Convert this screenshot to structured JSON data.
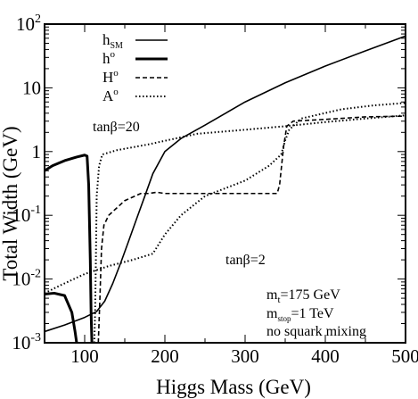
{
  "chart_data": {
    "type": "line",
    "xlabel": "Higgs Mass (GeV)",
    "ylabel": "Total Width (GeV)",
    "xlim": [
      50,
      500
    ],
    "ylim": [
      0.001,
      100
    ],
    "y_scale": "log",
    "grid": false,
    "legend_position": "top-left",
    "x_ticks": [
      {
        "value": 100,
        "label": "100"
      },
      {
        "value": 200,
        "label": "200"
      },
      {
        "value": 300,
        "label": "300"
      },
      {
        "value": 400,
        "label": "400"
      },
      {
        "value": 500,
        "label": "500"
      }
    ],
    "y_ticks": [
      {
        "value": 0.001,
        "base": "10",
        "exp": "-3"
      },
      {
        "value": 0.01,
        "base": "10",
        "exp": "-2"
      },
      {
        "value": 0.1,
        "base": "10",
        "exp": "-1"
      },
      {
        "value": 1,
        "base": "1",
        "exp": ""
      },
      {
        "value": 10,
        "base": "10",
        "exp": ""
      },
      {
        "value": 100,
        "base": "10",
        "exp": "2"
      }
    ],
    "legend": [
      {
        "main": "h",
        "sub": "SM",
        "sup": "",
        "style": "solid",
        "width": 1.6
      },
      {
        "main": "h",
        "sub": "",
        "sup": "o",
        "style": "solid",
        "width": 3
      },
      {
        "main": "H",
        "sub": "",
        "sup": "o",
        "style": "dashed",
        "width": 1.6
      },
      {
        "main": "A",
        "sub": "",
        "sup": "o",
        "style": "dotted",
        "width": 2
      }
    ],
    "annotations": {
      "tanb20": "tanβ=20",
      "tanb2": "tanβ=2",
      "mt_main": "m",
      "mt_sub": "t",
      "mt_rest": "=175 GeV",
      "mstop_main": "m",
      "mstop_sub": "stop",
      "mstop_rest": "=1 TeV",
      "mixing": "no squark mixing"
    },
    "series": [
      {
        "legend_index": 0,
        "style": "solid",
        "width": 1.6,
        "points": [
          [
            50,
            0.0015
          ],
          [
            75,
            0.0019
          ],
          [
            100,
            0.0025
          ],
          [
            115,
            0.0031
          ],
          [
            125,
            0.0045
          ],
          [
            135,
            0.0085
          ],
          [
            145,
            0.018
          ],
          [
            155,
            0.04
          ],
          [
            165,
            0.09
          ],
          [
            175,
            0.2
          ],
          [
            185,
            0.45
          ],
          [
            200,
            1
          ],
          [
            220,
            1.6
          ],
          [
            250,
            2.6
          ],
          [
            300,
            6
          ],
          [
            350,
            12
          ],
          [
            400,
            22
          ],
          [
            450,
            38
          ],
          [
            500,
            65
          ]
        ]
      },
      {
        "legend_index": 1,
        "style": "solid",
        "width": 3,
        "label_group": "tanβ=20",
        "points": [
          [
            50,
            0.5
          ],
          [
            60,
            0.6
          ],
          [
            75,
            0.72
          ],
          [
            90,
            0.82
          ],
          [
            100,
            0.88
          ],
          [
            103,
            0.85
          ],
          [
            105,
            0.3
          ],
          [
            107,
            0.02
          ],
          [
            108,
            0.003
          ],
          [
            109,
            0.001
          ]
        ]
      },
      {
        "legend_index": 1,
        "style": "solid",
        "width": 3,
        "label_group": "tanβ=2",
        "points": [
          [
            50,
            0.0058
          ],
          [
            62,
            0.006
          ],
          [
            75,
            0.0055
          ],
          [
            84,
            0.003
          ],
          [
            88,
            0.0015
          ],
          [
            90,
            0.001
          ]
        ]
      },
      {
        "legend_index": 3,
        "style": "dotted",
        "width": 2,
        "label_group": "tanβ=20",
        "points": [
          [
            112,
            0.001
          ],
          [
            113,
            0.003
          ],
          [
            114,
            0.02
          ],
          [
            115,
            0.2
          ],
          [
            118,
            0.6
          ],
          [
            122,
            0.9
          ],
          [
            140,
            1.05
          ],
          [
            180,
            1.3
          ],
          [
            240,
            1.9
          ],
          [
            300,
            2.2
          ],
          [
            350,
            2.5
          ],
          [
            400,
            2.9
          ],
          [
            450,
            3.3
          ],
          [
            500,
            3.7
          ]
        ]
      },
      {
        "legend_index": 3,
        "style": "dotted",
        "width": 2,
        "label_group": "tanβ=2",
        "points": [
          [
            50,
            0.006
          ],
          [
            70,
            0.008
          ],
          [
            100,
            0.012
          ],
          [
            130,
            0.016
          ],
          [
            160,
            0.02
          ],
          [
            185,
            0.025
          ],
          [
            200,
            0.05
          ],
          [
            220,
            0.1
          ],
          [
            250,
            0.2
          ],
          [
            300,
            0.35
          ],
          [
            330,
            0.6
          ],
          [
            345,
            0.9
          ],
          [
            350,
            1.5
          ],
          [
            355,
            2.2
          ],
          [
            370,
            3.3
          ],
          [
            420,
            4.6
          ],
          [
            460,
            5.3
          ],
          [
            500,
            5.8
          ]
        ]
      },
      {
        "legend_index": 2,
        "style": "dashed",
        "width": 1.6,
        "label_group": "tanβ=2",
        "points": [
          [
            117,
            0.001
          ],
          [
            119,
            0.005
          ],
          [
            121,
            0.03
          ],
          [
            124,
            0.07
          ],
          [
            130,
            0.1
          ],
          [
            150,
            0.17
          ],
          [
            170,
            0.22
          ],
          [
            180,
            0.22
          ],
          [
            190,
            0.23
          ],
          [
            200,
            0.22
          ],
          [
            230,
            0.22
          ],
          [
            260,
            0.22
          ],
          [
            300,
            0.22
          ],
          [
            330,
            0.22
          ],
          [
            340,
            0.22
          ],
          [
            343,
            0.3
          ],
          [
            348,
            1.2
          ],
          [
            352,
            2.5
          ],
          [
            360,
            3
          ],
          [
            400,
            3.2
          ],
          [
            450,
            3.5
          ],
          [
            500,
            3.6
          ]
        ]
      }
    ]
  }
}
